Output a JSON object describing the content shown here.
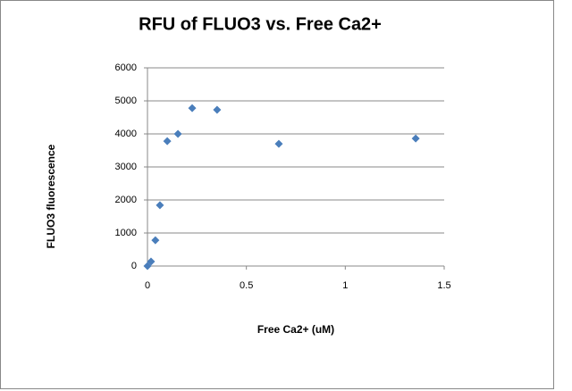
{
  "chart_data": {
    "type": "scatter",
    "title": "RFU of FLUO3 vs. Free Ca2+",
    "x_label": "Free Ca2+ (uM)",
    "y_label": "FLUO3 fluorescence",
    "x": [
      0,
      0.018,
      0.04,
      0.063,
      0.1,
      0.154,
      0.226,
      0.352,
      0.664,
      1.356
    ],
    "values": [
      0,
      135,
      780,
      1840,
      3780,
      4000,
      4780,
      4730,
      3700,
      3860
    ],
    "color": "#4a7ebb",
    "xlim": [
      0,
      1.5
    ],
    "xticks": [
      0,
      0.5,
      1,
      1.5
    ],
    "ylim": [
      0,
      6000
    ],
    "yticks": [
      0,
      1000,
      2000,
      3000,
      4000,
      5000,
      6000
    ],
    "grid": true
  }
}
